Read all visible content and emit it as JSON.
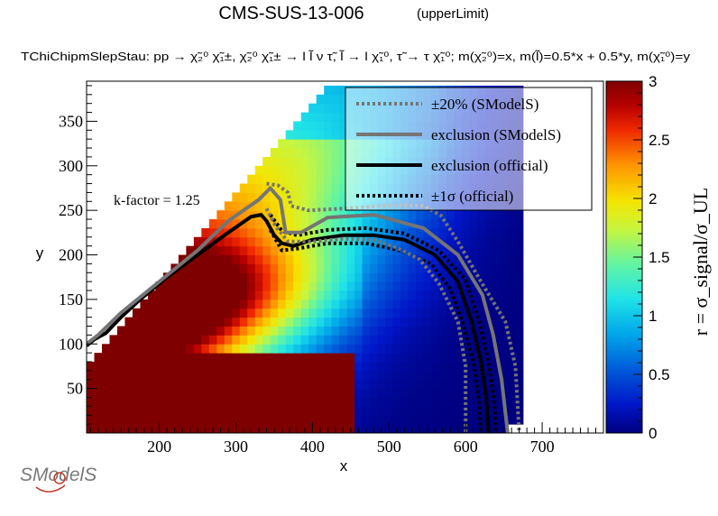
{
  "chart_data": {
    "type": "heatmap",
    "title": "CMS-SUS-13-006",
    "title_suffix": "(upperLimit)",
    "process_label": "TChiChipmSlepStau: pp  → χ̃₂⁰ χ̃₁±, χ̃₂⁰ χ̃₁± → l l̃ ν τ̃, l̃ → l χ̃₁⁰, τ̃ → τ χ̃₁⁰; m(χ̃₂⁰)=x, m(l̃)=0.5*x + 0.5*y, m(χ̃₁⁰)=y",
    "xlabel": "x",
    "ylabel": "y",
    "zlabel": "r = σ_signal/σ_UL",
    "xlim": [
      105,
      780
    ],
    "ylim": [
      0,
      395
    ],
    "zlim": [
      0,
      3
    ],
    "x_ticks": [
      200,
      300,
      400,
      500,
      600,
      700
    ],
    "y_ticks": [
      50,
      100,
      150,
      200,
      250,
      300,
      350
    ],
    "z_ticks": [
      0,
      0.5,
      1,
      1.5,
      2,
      2.5,
      3
    ],
    "annotation": "k-factor = 1.25",
    "logo": "SModelS",
    "legend": [
      {
        "label": "±20% (SModelS)",
        "style": "dotted",
        "color": "#757575"
      },
      {
        "label": "exclusion (SModelS)",
        "style": "solid",
        "color": "#757575"
      },
      {
        "label": "exclusion (official)",
        "style": "solid",
        "color": "#000000"
      },
      {
        "label": "±1σ (official)",
        "style": "dotted",
        "color": "#000000"
      }
    ],
    "series": [
      {
        "name": "exclusion (official)",
        "points": [
          [
            105,
            98
          ],
          [
            115,
            105
          ],
          [
            130,
            112
          ],
          [
            150,
            130
          ],
          [
            175,
            150
          ],
          [
            210,
            175
          ],
          [
            250,
            200
          ],
          [
            290,
            225
          ],
          [
            320,
            243
          ],
          [
            333,
            245
          ],
          [
            340,
            238
          ],
          [
            350,
            222
          ],
          [
            360,
            213
          ],
          [
            375,
            210
          ],
          [
            400,
            217
          ],
          [
            440,
            222
          ],
          [
            480,
            222
          ],
          [
            520,
            217
          ],
          [
            560,
            200
          ],
          [
            590,
            170
          ],
          [
            608,
            125
          ],
          [
            620,
            80
          ],
          [
            627,
            40
          ],
          [
            630,
            0
          ]
        ]
      },
      {
        "name": "±1σ (official) upper",
        "points": [
          [
            345,
            245
          ],
          [
            360,
            227
          ],
          [
            380,
            222
          ],
          [
            420,
            228
          ],
          [
            470,
            230
          ],
          [
            520,
            224
          ],
          [
            565,
            205
          ],
          [
            600,
            172
          ],
          [
            618,
            125
          ],
          [
            630,
            80
          ],
          [
            637,
            40
          ],
          [
            640,
            0
          ]
        ]
      },
      {
        "name": "±1σ (official) lower",
        "points": [
          [
            345,
            228
          ],
          [
            360,
            205
          ],
          [
            380,
            207
          ],
          [
            420,
            213
          ],
          [
            470,
            213
          ],
          [
            515,
            205
          ],
          [
            555,
            190
          ],
          [
            580,
            162
          ],
          [
            596,
            125
          ],
          [
            610,
            80
          ],
          [
            617,
            40
          ],
          [
            620,
            0
          ]
        ]
      },
      {
        "name": "exclusion (SModelS)",
        "points": [
          [
            105,
            100
          ],
          [
            120,
            110
          ],
          [
            150,
            135
          ],
          [
            200,
            170
          ],
          [
            250,
            205
          ],
          [
            290,
            238
          ],
          [
            330,
            262
          ],
          [
            345,
            275
          ],
          [
            358,
            262
          ],
          [
            365,
            225
          ],
          [
            385,
            225
          ],
          [
            420,
            242
          ],
          [
            480,
            245
          ],
          [
            545,
            230
          ],
          [
            590,
            200
          ],
          [
            622,
            155
          ],
          [
            636,
            110
          ],
          [
            647,
            60
          ],
          [
            655,
            0
          ]
        ]
      },
      {
        "name": "±20% (SModelS) upper",
        "points": [
          [
            340,
            280
          ],
          [
            355,
            278
          ],
          [
            368,
            270
          ],
          [
            372,
            255
          ],
          [
            395,
            250
          ],
          [
            440,
            252
          ],
          [
            510,
            256
          ],
          [
            545,
            255
          ],
          [
            568,
            244
          ],
          [
            590,
            215
          ],
          [
            620,
            170
          ],
          [
            652,
            125
          ],
          [
            665,
            75
          ],
          [
            670,
            0
          ]
        ]
      },
      {
        "name": "±20% (SModelS) lower",
        "points": [
          [
            340,
            252
          ],
          [
            352,
            232
          ],
          [
            368,
            215
          ],
          [
            400,
            215
          ],
          [
            440,
            218
          ],
          [
            480,
            217
          ],
          [
            510,
            208
          ],
          [
            540,
            195
          ],
          [
            565,
            168
          ],
          [
            590,
            125
          ],
          [
            600,
            75
          ],
          [
            600,
            0
          ]
        ]
      }
    ]
  }
}
